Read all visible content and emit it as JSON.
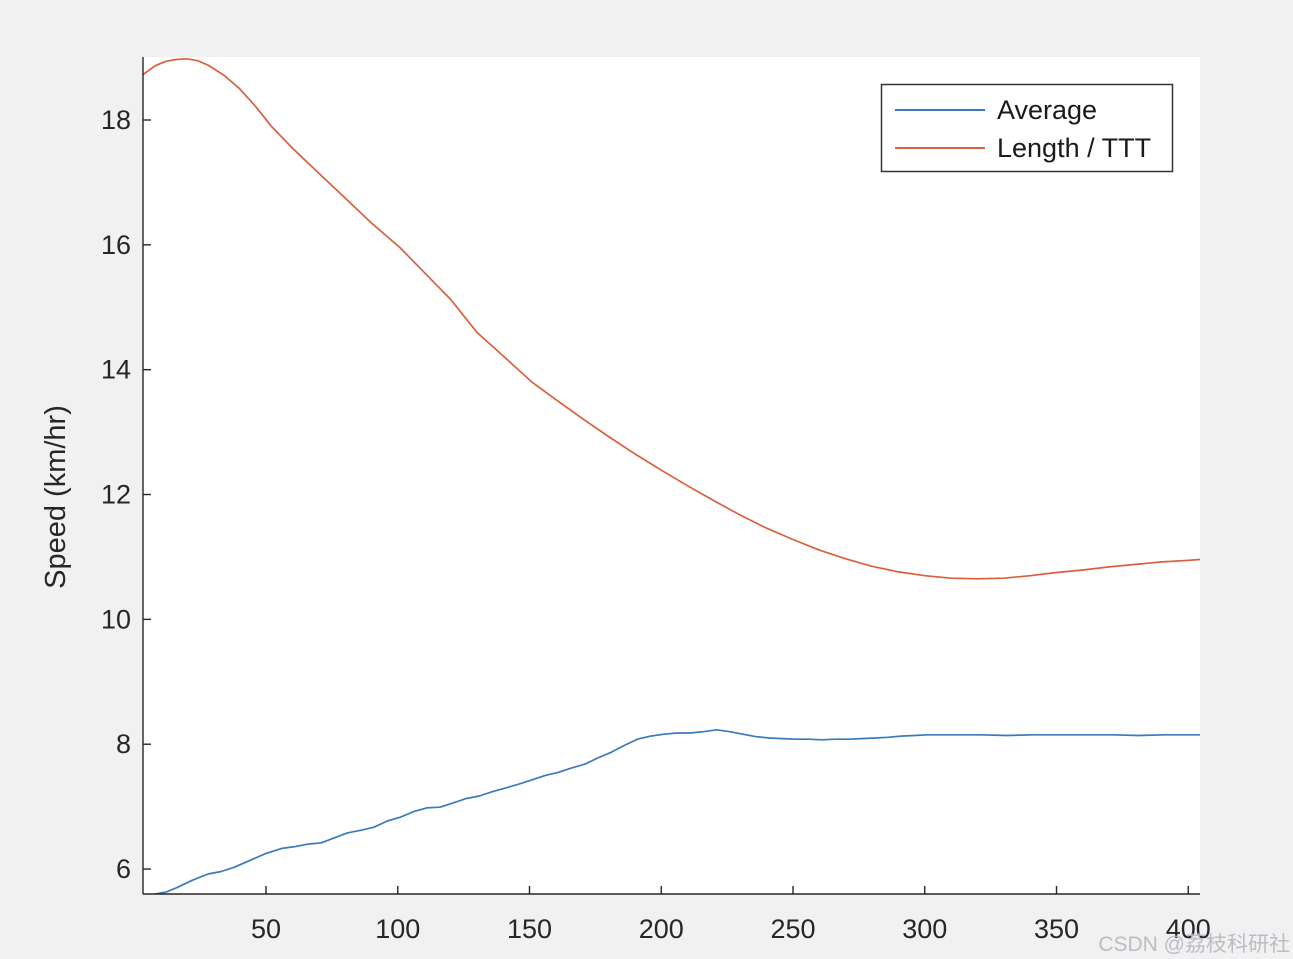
{
  "figure": {
    "background_color": "#f0f1f0",
    "plot_background_color": "#ffffff",
    "axis_color": "#262626",
    "watermark": "CSDN @荔枝科研社",
    "watermark_color": "#b4bac3"
  },
  "chart_data": {
    "type": "line",
    "title": "",
    "xlabel": "",
    "ylabel": "Speed (km/hr)",
    "xlim": [
      3,
      405
    ],
    "ylim": [
      5.6,
      19.0
    ],
    "x_ticks": [
      50,
      100,
      150,
      200,
      250,
      300,
      350,
      400
    ],
    "y_ticks": [
      6,
      8,
      10,
      12,
      14,
      16,
      18
    ],
    "grid": false,
    "legend": {
      "position": "top-right",
      "border_color": "#333333",
      "background": "#ffffff",
      "entries": [
        {
          "label": "Average",
          "color": "#3a7abd"
        },
        {
          "label": "Length / TTT",
          "color": "#d8613c"
        }
      ]
    },
    "series": [
      {
        "name": "Average",
        "color": "#3a7abd",
        "x": [
          3,
          8,
          12,
          16,
          22,
          28,
          33,
          38,
          44,
          50,
          56,
          61,
          66,
          71,
          76,
          81,
          86,
          91,
          96,
          101,
          106,
          111,
          116,
          121,
          126,
          131,
          136,
          141,
          146,
          151,
          156,
          161,
          166,
          171,
          176,
          181,
          186,
          191,
          196,
          201,
          206,
          211,
          216,
          221,
          226,
          231,
          236,
          241,
          246,
          251,
          256,
          261,
          266,
          271,
          276,
          281,
          286,
          291,
          296,
          301,
          311,
          321,
          331,
          341,
          351,
          361,
          371,
          381,
          391,
          400,
          405
        ],
        "y": [
          5.58,
          5.6,
          5.63,
          5.7,
          5.82,
          5.92,
          5.96,
          6.03,
          6.14,
          6.25,
          6.33,
          6.36,
          6.4,
          6.42,
          6.5,
          6.58,
          6.62,
          6.67,
          6.77,
          6.83,
          6.92,
          6.98,
          6.99,
          7.06,
          7.13,
          7.17,
          7.24,
          7.3,
          7.36,
          7.43,
          7.5,
          7.55,
          7.62,
          7.68,
          7.78,
          7.87,
          7.98,
          8.08,
          8.13,
          8.16,
          8.18,
          8.18,
          8.2,
          8.23,
          8.2,
          8.16,
          8.12,
          8.1,
          8.09,
          8.08,
          8.08,
          8.07,
          8.08,
          8.08,
          8.09,
          8.1,
          8.11,
          8.13,
          8.14,
          8.15,
          8.15,
          8.15,
          8.14,
          8.15,
          8.15,
          8.15,
          8.15,
          8.14,
          8.15,
          8.15,
          8.15
        ]
      },
      {
        "name": "Length / TTT",
        "color": "#d8613c",
        "x": [
          3,
          8,
          12,
          16,
          20,
          24,
          28,
          34,
          40,
          46,
          52,
          60,
          70,
          80,
          90,
          101,
          110,
          120,
          130,
          140,
          151,
          160,
          170,
          180,
          190,
          200,
          210,
          220,
          230,
          240,
          250,
          260,
          270,
          280,
          290,
          300,
          310,
          320,
          330,
          340,
          350,
          360,
          370,
          380,
          390,
          398,
          405
        ],
        "y": [
          18.72,
          18.87,
          18.94,
          18.97,
          18.98,
          18.95,
          18.88,
          18.72,
          18.5,
          18.22,
          17.9,
          17.55,
          17.15,
          16.75,
          16.35,
          15.95,
          15.56,
          15.13,
          14.6,
          14.22,
          13.8,
          13.52,
          13.22,
          12.93,
          12.65,
          12.39,
          12.14,
          11.9,
          11.67,
          11.46,
          11.28,
          11.11,
          10.97,
          10.85,
          10.76,
          10.7,
          10.66,
          10.65,
          10.66,
          10.7,
          10.75,
          10.79,
          10.84,
          10.88,
          10.92,
          10.94,
          10.96
        ]
      }
    ]
  }
}
